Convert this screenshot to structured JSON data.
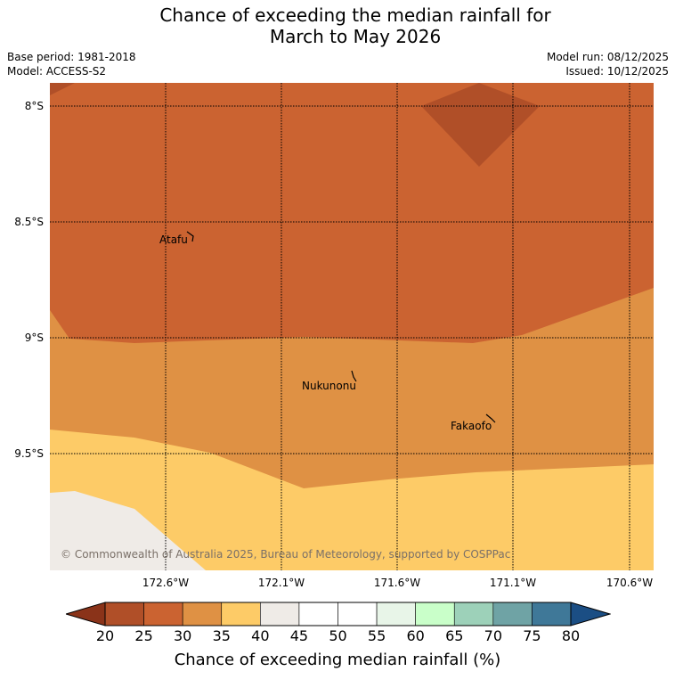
{
  "title": {
    "line1": "Chance of exceeding the median rainfall for",
    "line2": "March to May 2026"
  },
  "meta": {
    "base_period": "Base period: 1981-2018",
    "model": "Model: ACCESS-S2",
    "model_run": "Model run: 08/12/2025",
    "issued": "Issued: 10/12/2025"
  },
  "map": {
    "lat_labels": [
      "8°S",
      "8.5°S",
      "9°S",
      "9.5°S"
    ],
    "lon_labels": [
      "172.6°W",
      "172.1°W",
      "171.6°W",
      "171.1°W",
      "170.6°W"
    ],
    "places": [
      "Atafu",
      "Nukunonu",
      "Fakaofo"
    ],
    "copyright": "© Commonwealth of Australia 2025, Bureau of Meteorology, supported by COSPPac",
    "region_colors": {
      "20-25": "#b04f28",
      "25-30": "#cb6331",
      "30-35": "#df9144",
      "35-40": "#fdcb67",
      "40-45": "#efebe7"
    }
  },
  "colorbar": {
    "ticks": [
      "20",
      "25",
      "30",
      "35",
      "40",
      "45",
      "50",
      "55",
      "60",
      "65",
      "70",
      "75",
      "80"
    ],
    "colors": [
      "#b04f28",
      "#cb6331",
      "#df9144",
      "#fdcb67",
      "#efebe7",
      "#ffffff",
      "#ffffff",
      "#e8f5e8",
      "#c9ffc9",
      "#9dd1b9",
      "#6fa3a5",
      "#3f7898"
    ],
    "under_color": "#8a3319",
    "over_color": "#1b4e84",
    "label": "Chance of exceeding median rainfall (%)"
  }
}
